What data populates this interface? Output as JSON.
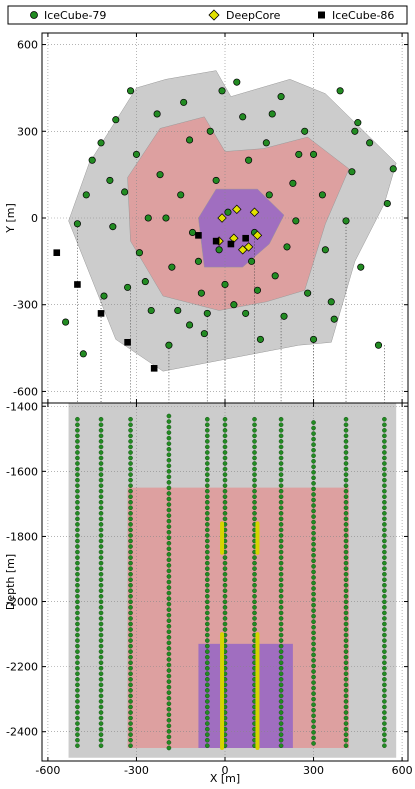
{
  "chart_data": [
    {
      "type": "scatter",
      "panel": "top",
      "xlabel": "",
      "ylabel": "Y [m]",
      "xlim": [
        -620,
        620
      ],
      "ylim": [
        -640,
        640
      ],
      "xticks": [
        -600,
        -300,
        0,
        300,
        600
      ],
      "yticks": [
        600,
        300,
        0,
        -300,
        -600
      ],
      "ytick_labels": [
        "600",
        "300",
        "0",
        "-300",
        "-600"
      ],
      "grid": true,
      "legend": {
        "placement": "top",
        "entries": [
          {
            "name": "IceCube-79",
            "marker": "circle",
            "color": "#228b22"
          },
          {
            "name": "DeepCore",
            "marker": "diamond",
            "color": "#e2e200"
          },
          {
            "name": "IceCube-86",
            "marker": "square",
            "color": "#000000"
          }
        ]
      },
      "regions": [
        {
          "color": "#cccccc",
          "polygon": [
            [
              -530,
              -10
            ],
            [
              -460,
              190
            ],
            [
              -300,
              450
            ],
            [
              -200,
              480
            ],
            [
              -30,
              510
            ],
            [
              20,
              420
            ],
            [
              220,
              480
            ],
            [
              340,
              430
            ],
            [
              440,
              330
            ],
            [
              580,
              190
            ],
            [
              540,
              50
            ],
            [
              440,
              -150
            ],
            [
              360,
              -430
            ],
            [
              250,
              -440
            ],
            [
              -210,
              -530
            ],
            [
              -370,
              -420
            ]
          ]
        },
        {
          "color": "#dda0a0",
          "polygon": [
            [
              -330,
              140
            ],
            [
              -220,
              310
            ],
            [
              -70,
              350
            ],
            [
              0,
              230
            ],
            [
              130,
              240
            ],
            [
              280,
              280
            ],
            [
              420,
              170
            ],
            [
              340,
              -20
            ],
            [
              270,
              -250
            ],
            [
              140,
              -290
            ],
            [
              -20,
              -320
            ],
            [
              -210,
              -270
            ],
            [
              -320,
              -80
            ]
          ]
        },
        {
          "color": "#a06ec0",
          "polygon": [
            [
              -90,
              0
            ],
            [
              -30,
              100
            ],
            [
              110,
              100
            ],
            [
              200,
              10
            ],
            [
              150,
              -90
            ],
            [
              60,
              -170
            ],
            [
              -70,
              -170
            ]
          ]
        }
      ],
      "series": [
        {
          "name": "IceCube-79",
          "points": [
            [
              -500,
              -20
            ],
            [
              -470,
              80
            ],
            [
              -450,
              200
            ],
            [
              -420,
              260
            ],
            [
              -390,
              130
            ],
            [
              -370,
              340
            ],
            [
              -340,
              90
            ],
            [
              -320,
              440
            ],
            [
              -300,
              220
            ],
            [
              -290,
              -120
            ],
            [
              -270,
              -220
            ],
            [
              -250,
              -320
            ],
            [
              -230,
              360
            ],
            [
              -220,
              150
            ],
            [
              -200,
              0
            ],
            [
              -180,
              -170
            ],
            [
              -160,
              -320
            ],
            [
              -140,
              400
            ],
            [
              -120,
              270
            ],
            [
              -110,
              -50
            ],
            [
              -90,
              -150
            ],
            [
              -80,
              -260
            ],
            [
              -70,
              -400
            ],
            [
              -50,
              300
            ],
            [
              -30,
              130
            ],
            [
              -20,
              -110
            ],
            [
              0,
              -230
            ],
            [
              10,
              20
            ],
            [
              30,
              -300
            ],
            [
              40,
              470
            ],
            [
              60,
              350
            ],
            [
              80,
              200
            ],
            [
              90,
              -150
            ],
            [
              100,
              -50
            ],
            [
              120,
              -420
            ],
            [
              140,
              260
            ],
            [
              150,
              80
            ],
            [
              170,
              -200
            ],
            [
              190,
              420
            ],
            [
              200,
              -340
            ],
            [
              230,
              120
            ],
            [
              240,
              -10
            ],
            [
              270,
              300
            ],
            [
              280,
              -260
            ],
            [
              300,
              220
            ],
            [
              330,
              80
            ],
            [
              340,
              -110
            ],
            [
              370,
              -350
            ],
            [
              390,
              440
            ],
            [
              410,
              -10
            ],
            [
              430,
              160
            ],
            [
              450,
              330
            ],
            [
              460,
              -170
            ],
            [
              490,
              260
            ],
            [
              520,
              -440
            ],
            [
              550,
              50
            ],
            [
              570,
              170
            ],
            [
              -540,
              -360
            ],
            [
              -480,
              -470
            ],
            [
              -410,
              -270
            ],
            [
              -380,
              -30
            ],
            [
              -330,
              -240
            ],
            [
              -260,
              0
            ],
            [
              -190,
              -440
            ],
            [
              -150,
              80
            ],
            [
              -120,
              -370
            ],
            [
              -60,
              -330
            ],
            [
              -10,
              440
            ],
            [
              70,
              -330
            ],
            [
              110,
              -250
            ],
            [
              160,
              360
            ],
            [
              210,
              -100
            ],
            [
              250,
              220
            ],
            [
              300,
              -420
            ],
            [
              360,
              -290
            ],
            [
              440,
              300
            ]
          ]
        },
        {
          "name": "DeepCore",
          "points": [
            [
              -10,
              0
            ],
            [
              40,
              30
            ],
            [
              100,
              20
            ],
            [
              -20,
              -80
            ],
            [
              30,
              -70
            ],
            [
              60,
              -110
            ],
            [
              110,
              -60
            ],
            [
              80,
              -100
            ]
          ]
        },
        {
          "name": "IceCube-86",
          "points": [
            [
              -570,
              -120
            ],
            [
              -500,
              -230
            ],
            [
              -420,
              -330
            ],
            [
              -330,
              -430
            ],
            [
              -240,
              -520
            ],
            [
              -90,
              -60
            ],
            [
              -30,
              -80
            ],
            [
              20,
              -90
            ],
            [
              70,
              -70
            ]
          ]
        }
      ]
    },
    {
      "type": "scatter",
      "panel": "bottom",
      "xlabel": "X [m]",
      "ylabel": "Depth [m]",
      "xlim": [
        -620,
        620
      ],
      "ylim": [
        -2490,
        -1390
      ],
      "xticks": [
        -600,
        -300,
        0,
        300,
        600
      ],
      "xtick_labels": [
        "-600",
        "-300",
        "0",
        "300",
        "600"
      ],
      "yticks": [
        -1400,
        -1600,
        -1800,
        -2000,
        -2200,
        -2400
      ],
      "ytick_labels": [
        "-1400",
        "-1600",
        "-1800",
        "-2000",
        "-2200",
        "-2400"
      ],
      "grid": true,
      "regions": [
        {
          "color": "#cccccc",
          "x": [
            -530,
            580
          ],
          "depth": [
            -1390,
            -2480
          ]
        },
        {
          "color": "#dda0a0",
          "x": [
            -330,
            420
          ],
          "depth": [
            -1650,
            -2450
          ]
        },
        {
          "color": "#a06ec0",
          "x": [
            -90,
            230
          ],
          "depth": [
            -2130,
            -2450
          ]
        }
      ],
      "icecube_strings": {
        "x": [
          -500,
          -420,
          -320,
          -190,
          -60,
          0,
          100,
          190,
          300,
          410,
          540
        ],
        "top_depth": [
          -1440,
          -1440,
          -1440,
          -1430,
          -1440,
          -1440,
          -1440,
          -1440,
          -1450,
          -1440,
          -1440
        ],
        "bottom_depth": -2450,
        "dom_spacing": 17
      },
      "deepcore_strings": {
        "x": [
          -10,
          110
        ],
        "upper_depth": [
          -1760,
          -1850
        ],
        "lower_depth": [
          -2100,
          -2450
        ]
      }
    }
  ]
}
